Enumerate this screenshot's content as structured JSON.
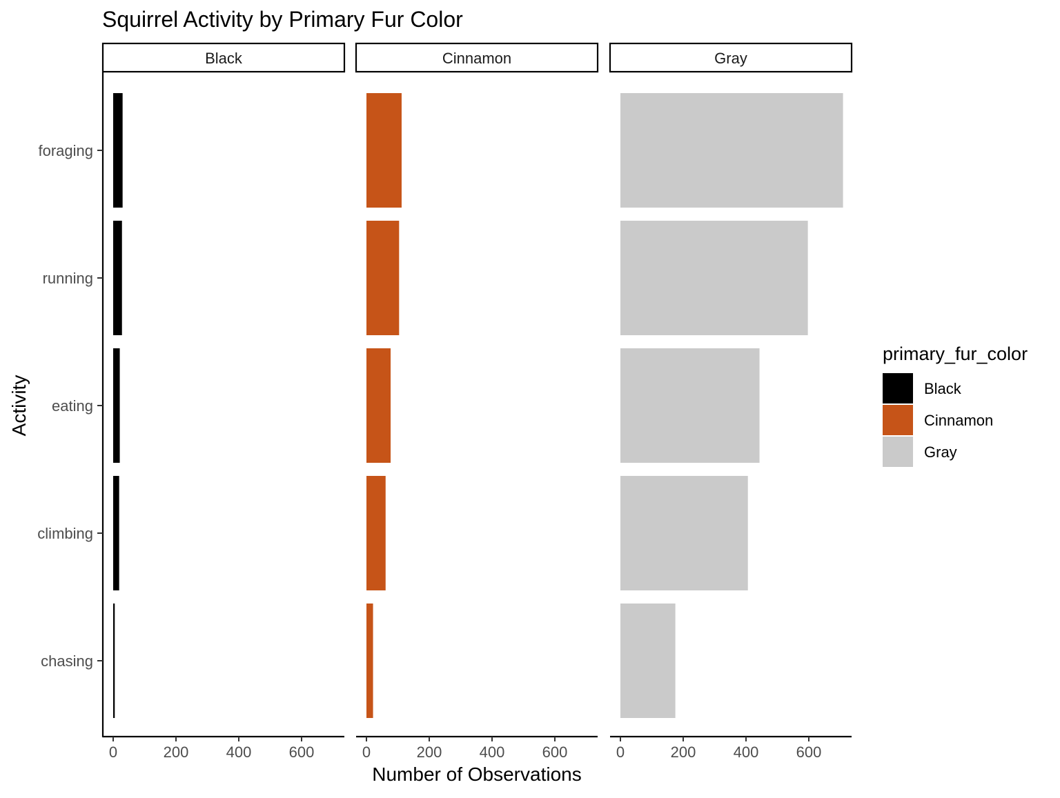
{
  "chart_data": {
    "type": "bar",
    "orientation": "horizontal",
    "facets": [
      "Black",
      "Cinnamon",
      "Gray"
    ],
    "categories": [
      "foraging",
      "running",
      "eating",
      "climbing",
      "chasing"
    ],
    "series": [
      {
        "name": "Black",
        "color": "#000000",
        "values": [
          30,
          28,
          21,
          19,
          5
        ]
      },
      {
        "name": "Cinnamon",
        "color": "#C65418",
        "values": [
          112,
          104,
          77,
          61,
          21
        ]
      },
      {
        "name": "Gray",
        "color": "#CACACA",
        "values": [
          709,
          597,
          443,
          406,
          175
        ]
      }
    ],
    "title": "Squirrel Activity by Primary Fur Color",
    "xlabel": "Number of Observations",
    "ylabel": "Activity",
    "xlim": [
      0,
      738
    ],
    "xticks": [
      0,
      200,
      400,
      600
    ],
    "grid": false,
    "legend": {
      "title": "primary_fur_color",
      "position": "right",
      "entries": [
        "Black",
        "Cinnamon",
        "Gray"
      ]
    }
  }
}
